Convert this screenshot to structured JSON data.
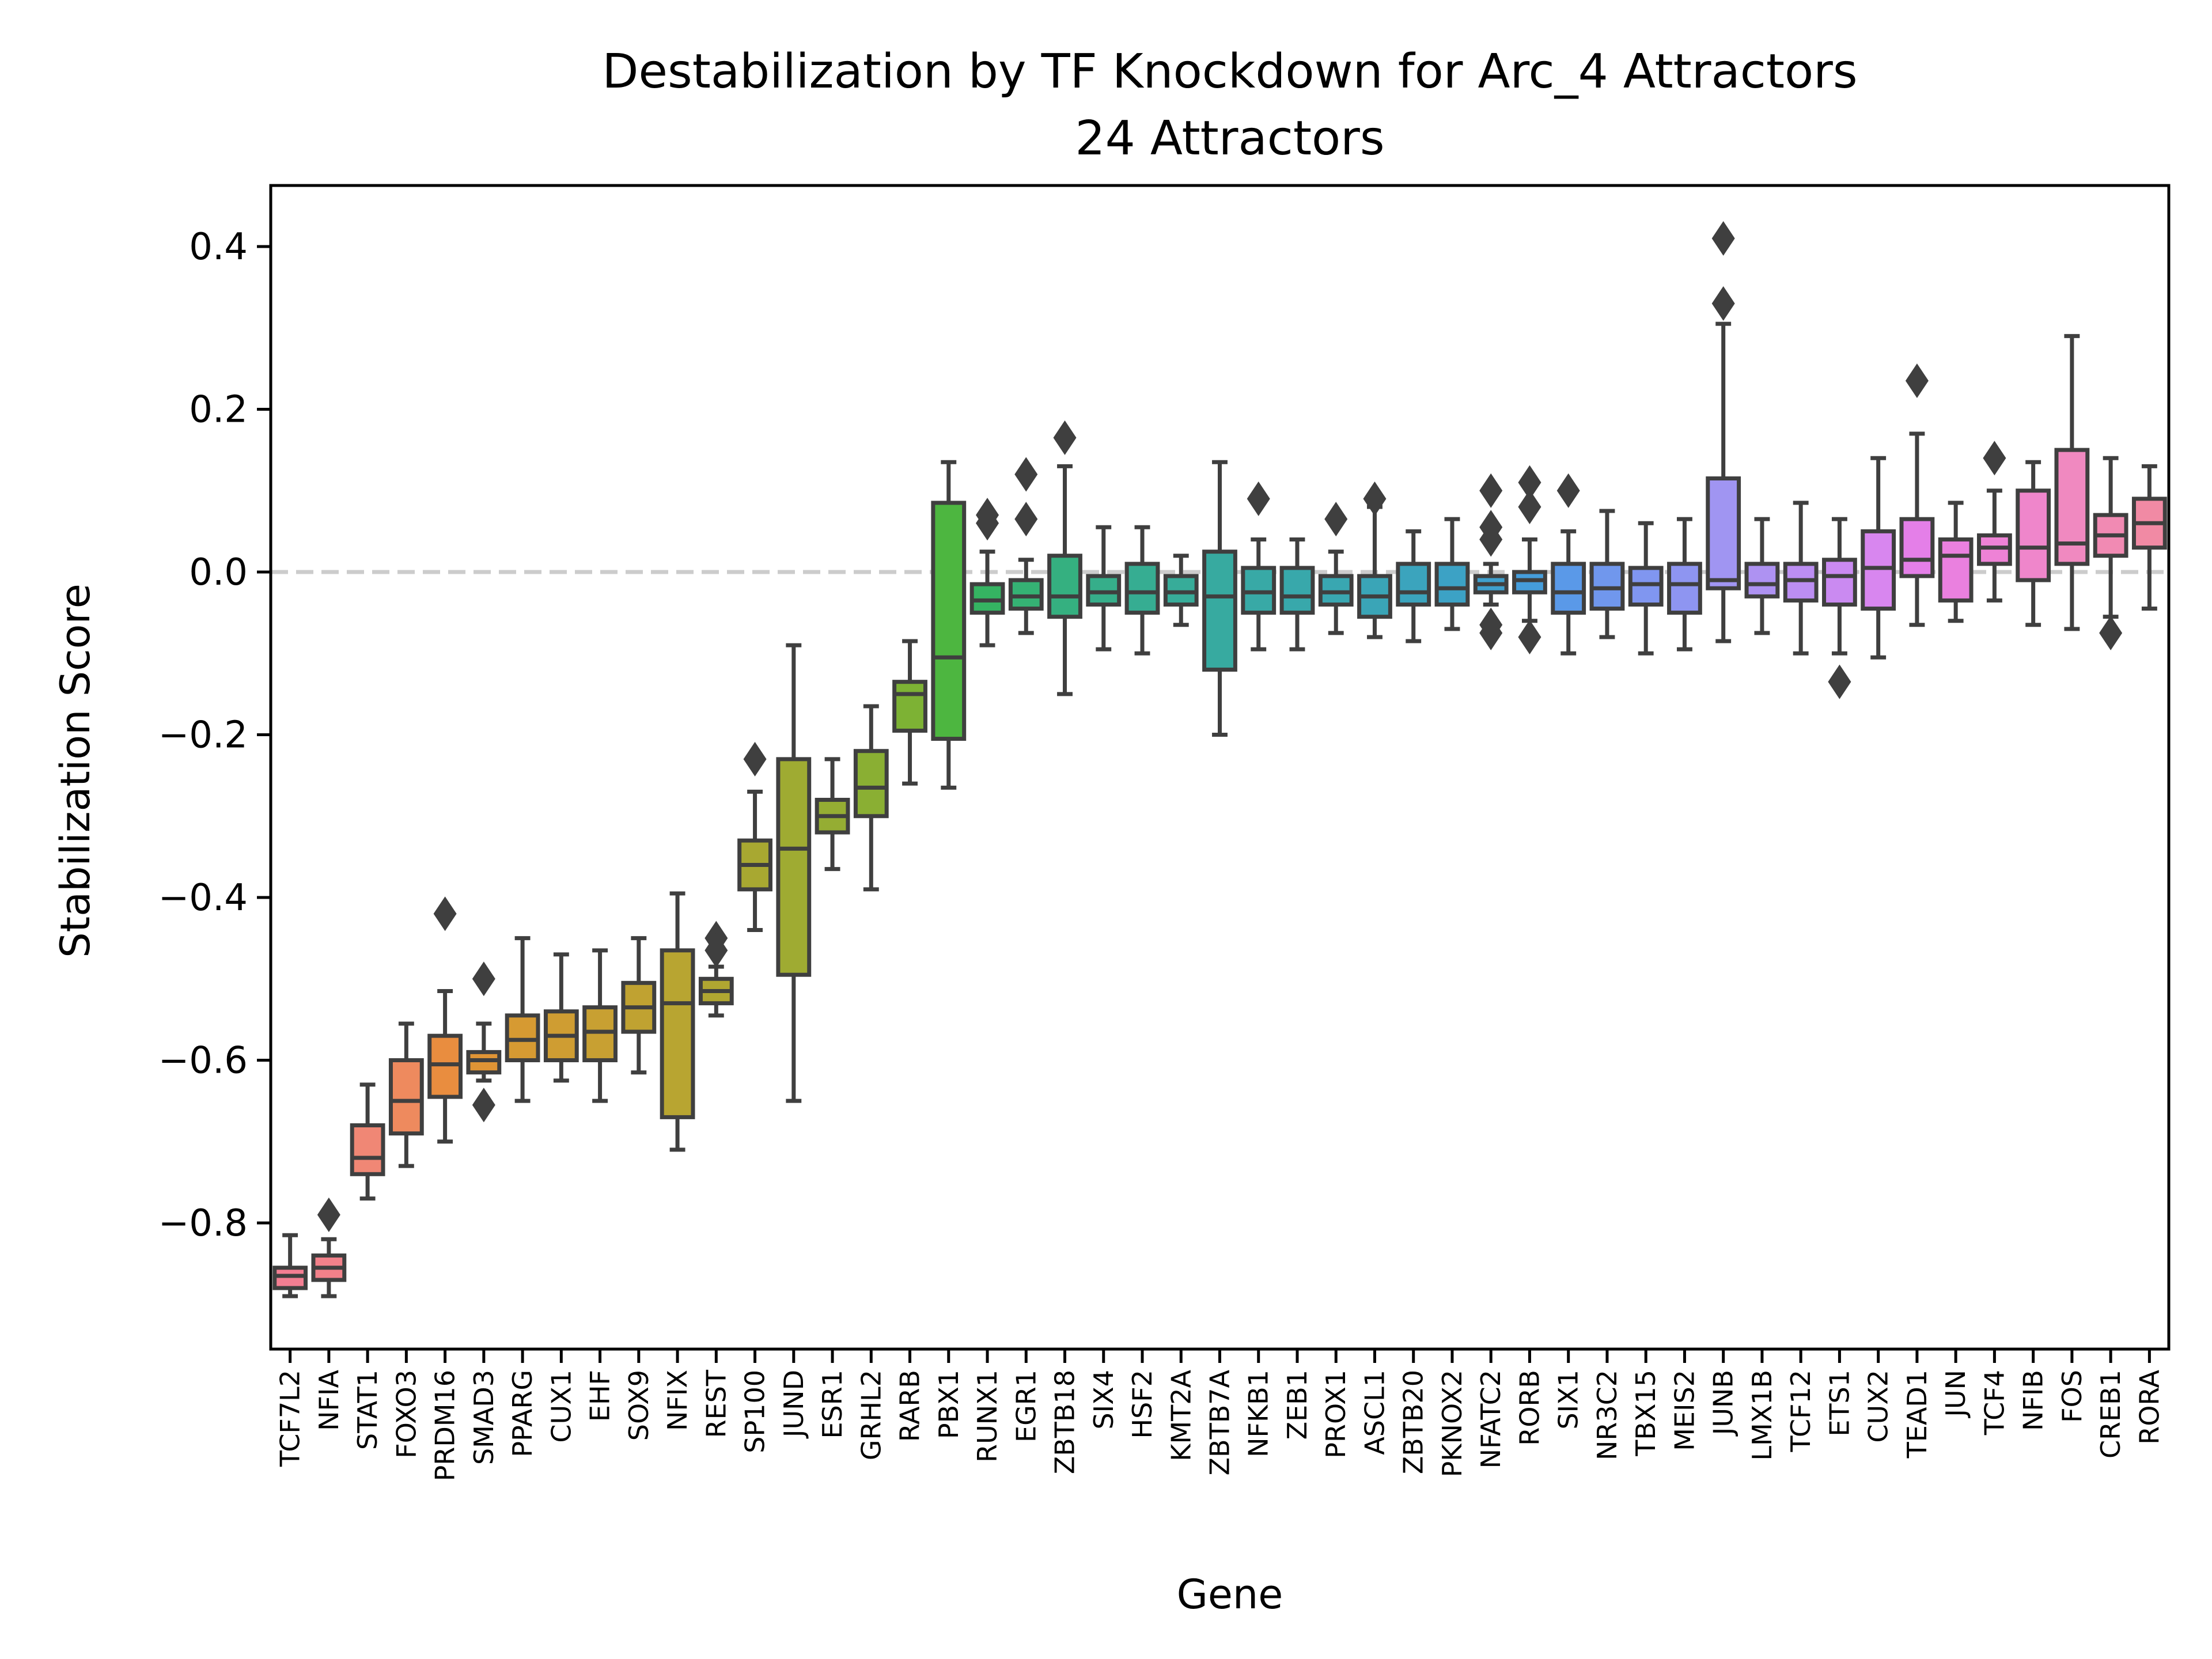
{
  "chart_data": {
    "type": "box",
    "title": "Destabilization by TF Knockdown for Arc_4 Attractors",
    "subtitle": "24 Attractors",
    "xlabel": "Gene",
    "ylabel": "Stabilization Score",
    "ylim": [
      -0.955,
      0.475
    ],
    "yticks": [
      {
        "value": 0.4,
        "label": "0.4"
      },
      {
        "value": 0.2,
        "label": "0.2"
      },
      {
        "value": 0.0,
        "label": "0.0"
      },
      {
        "value": -0.2,
        "label": "−0.2"
      },
      {
        "value": -0.4,
        "label": "−0.4"
      },
      {
        "value": -0.6,
        "label": "−0.6"
      },
      {
        "value": -0.8,
        "label": "−0.8"
      }
    ],
    "reference_line": {
      "y": 0.0,
      "style": "dashed",
      "color": "#cccccc"
    },
    "grid": false,
    "boxes": [
      {
        "gene": "TCF7L2",
        "color": "#f37e92",
        "whislo": -0.89,
        "q1": -0.88,
        "med": -0.865,
        "q3": -0.855,
        "whishi": -0.815,
        "fliers": []
      },
      {
        "gene": "NFIA",
        "color": "#f2818a",
        "whislo": -0.89,
        "q1": -0.87,
        "med": -0.855,
        "q3": -0.84,
        "whishi": -0.82,
        "fliers": [
          -0.79
        ]
      },
      {
        "gene": "STAT1",
        "color": "#f08775",
        "whislo": -0.77,
        "q1": -0.74,
        "med": -0.72,
        "q3": -0.68,
        "whishi": -0.63,
        "fliers": []
      },
      {
        "gene": "FOXO3",
        "color": "#ee8a5e",
        "whislo": -0.73,
        "q1": -0.69,
        "med": -0.65,
        "q3": -0.6,
        "whishi": -0.555,
        "fliers": []
      },
      {
        "gene": "PRDM16",
        "color": "#e98d3f",
        "whislo": -0.7,
        "q1": -0.645,
        "med": -0.605,
        "q3": -0.57,
        "whishi": -0.515,
        "fliers": [
          -0.42
        ]
      },
      {
        "gene": "SMAD3",
        "color": "#df9435",
        "whislo": -0.625,
        "q1": -0.615,
        "med": -0.6,
        "q3": -0.59,
        "whishi": -0.555,
        "fliers": [
          -0.5,
          -0.655
        ]
      },
      {
        "gene": "PPARG",
        "color": "#d69a32",
        "whislo": -0.65,
        "q1": -0.6,
        "med": -0.575,
        "q3": -0.545,
        "whishi": -0.45,
        "fliers": []
      },
      {
        "gene": "CUX1",
        "color": "#cf9d32",
        "whislo": -0.625,
        "q1": -0.6,
        "med": -0.57,
        "q3": -0.54,
        "whishi": -0.47,
        "fliers": []
      },
      {
        "gene": "EHF",
        "color": "#c8a032",
        "whislo": -0.65,
        "q1": -0.6,
        "med": -0.565,
        "q3": -0.535,
        "whishi": -0.465,
        "fliers": []
      },
      {
        "gene": "SOX9",
        "color": "#c0a231",
        "whislo": -0.615,
        "q1": -0.565,
        "med": -0.535,
        "q3": -0.505,
        "whishi": -0.45,
        "fliers": []
      },
      {
        "gene": "NFIX",
        "color": "#b8a531",
        "whislo": -0.71,
        "q1": -0.67,
        "med": -0.53,
        "q3": -0.465,
        "whishi": -0.395,
        "fliers": []
      },
      {
        "gene": "REST",
        "color": "#b0a631",
        "whislo": -0.545,
        "q1": -0.53,
        "med": -0.515,
        "q3": -0.5,
        "whishi": -0.485,
        "fliers": [
          -0.45,
          -0.465
        ]
      },
      {
        "gene": "SP100",
        "color": "#a8a831",
        "whislo": -0.44,
        "q1": -0.39,
        "med": -0.36,
        "q3": -0.33,
        "whishi": -0.27,
        "fliers": [
          -0.23
        ]
      },
      {
        "gene": "JUND",
        "color": "#9fab32",
        "whislo": -0.65,
        "q1": -0.495,
        "med": -0.34,
        "q3": -0.23,
        "whishi": -0.09,
        "fliers": []
      },
      {
        "gene": "ESR1",
        "color": "#95ad33",
        "whislo": -0.365,
        "q1": -0.32,
        "med": -0.3,
        "q3": -0.28,
        "whishi": -0.23,
        "fliers": []
      },
      {
        "gene": "GRHL2",
        "color": "#8aaf33",
        "whislo": -0.39,
        "q1": -0.3,
        "med": -0.265,
        "q3": -0.22,
        "whishi": -0.165,
        "fliers": []
      },
      {
        "gene": "RARB",
        "color": "#7db234",
        "whislo": -0.26,
        "q1": -0.195,
        "med": -0.15,
        "q3": -0.135,
        "whishi": -0.085,
        "fliers": []
      },
      {
        "gene": "PBX1",
        "color": "#4db640",
        "whislo": -0.265,
        "q1": -0.205,
        "med": -0.105,
        "q3": 0.085,
        "whishi": 0.135,
        "fliers": []
      },
      {
        "gene": "RUNX1",
        "color": "#35b462",
        "whislo": -0.09,
        "q1": -0.05,
        "med": -0.035,
        "q3": -0.015,
        "whishi": 0.025,
        "fliers": [
          0.06,
          0.07
        ]
      },
      {
        "gene": "EGR1",
        "color": "#35b274",
        "whislo": -0.075,
        "q1": -0.045,
        "med": -0.03,
        "q3": -0.01,
        "whishi": 0.015,
        "fliers": [
          0.065,
          0.12
        ]
      },
      {
        "gene": "ZBTB18",
        "color": "#35b080",
        "whislo": -0.15,
        "q1": -0.055,
        "med": -0.03,
        "q3": 0.02,
        "whishi": 0.13,
        "fliers": [
          0.165
        ]
      },
      {
        "gene": "SIX4",
        "color": "#36ae8a",
        "whislo": -0.095,
        "q1": -0.04,
        "med": -0.025,
        "q3": -0.005,
        "whishi": 0.055,
        "fliers": []
      },
      {
        "gene": "HSF2",
        "color": "#36ad92",
        "whislo": -0.1,
        "q1": -0.05,
        "med": -0.025,
        "q3": 0.01,
        "whishi": 0.055,
        "fliers": []
      },
      {
        "gene": "KMT2A",
        "color": "#37ac99",
        "whislo": -0.065,
        "q1": -0.04,
        "med": -0.025,
        "q3": -0.005,
        "whishi": 0.02,
        "fliers": []
      },
      {
        "gene": "ZBTB7A",
        "color": "#37aaa0",
        "whislo": -0.2,
        "q1": -0.12,
        "med": -0.03,
        "q3": 0.025,
        "whishi": 0.135,
        "fliers": []
      },
      {
        "gene": "NFKB1",
        "color": "#38a9a6",
        "whislo": -0.095,
        "q1": -0.05,
        "med": -0.025,
        "q3": 0.005,
        "whishi": 0.04,
        "fliers": [
          0.09
        ]
      },
      {
        "gene": "ZEB1",
        "color": "#38a8ab",
        "whislo": -0.095,
        "q1": -0.05,
        "med": -0.03,
        "q3": 0.005,
        "whishi": 0.04,
        "fliers": []
      },
      {
        "gene": "PROX1",
        "color": "#39a7b1",
        "whislo": -0.075,
        "q1": -0.04,
        "med": -0.025,
        "q3": -0.005,
        "whishi": 0.025,
        "fliers": [
          0.065
        ]
      },
      {
        "gene": "ASCL1",
        "color": "#3aa5b7",
        "whislo": -0.08,
        "q1": -0.055,
        "med": -0.03,
        "q3": -0.005,
        "whishi": 0.08,
        "fliers": [
          0.09
        ]
      },
      {
        "gene": "ZBTB20",
        "color": "#3ba4bd",
        "whislo": -0.085,
        "q1": -0.04,
        "med": -0.025,
        "q3": 0.01,
        "whishi": 0.05,
        "fliers": []
      },
      {
        "gene": "PKNOX2",
        "color": "#3ca2c5",
        "whislo": -0.07,
        "q1": -0.04,
        "med": -0.02,
        "q3": 0.01,
        "whishi": 0.065,
        "fliers": []
      },
      {
        "gene": "NFATC2",
        "color": "#3fa0ce",
        "whislo": -0.04,
        "q1": -0.025,
        "med": -0.015,
        "q3": -0.005,
        "whishi": 0.01,
        "fliers": [
          0.04,
          0.055,
          0.1,
          -0.065,
          -0.075
        ]
      },
      {
        "gene": "RORB",
        "color": "#459ddb",
        "whislo": -0.06,
        "q1": -0.025,
        "med": -0.01,
        "q3": 0.0,
        "whishi": 0.04,
        "fliers": [
          0.08,
          0.11,
          -0.08
        ]
      },
      {
        "gene": "SIX1",
        "color": "#5a99e8",
        "whislo": -0.1,
        "q1": -0.05,
        "med": -0.025,
        "q3": 0.01,
        "whishi": 0.05,
        "fliers": [
          0.1
        ]
      },
      {
        "gene": "NR3C2",
        "color": "#7097ed",
        "whislo": -0.08,
        "q1": -0.045,
        "med": -0.02,
        "q3": 0.01,
        "whishi": 0.075,
        "fliers": []
      },
      {
        "gene": "TBX15",
        "color": "#8096f0",
        "whislo": -0.1,
        "q1": -0.04,
        "med": -0.015,
        "q3": 0.005,
        "whishi": 0.06,
        "fliers": []
      },
      {
        "gene": "MEIS2",
        "color": "#8e95f1",
        "whislo": -0.095,
        "q1": -0.05,
        "med": -0.015,
        "q3": 0.01,
        "whishi": 0.065,
        "fliers": []
      },
      {
        "gene": "JUNB",
        "color": "#a095f2",
        "whislo": -0.085,
        "q1": -0.02,
        "med": -0.01,
        "q3": 0.115,
        "whishi": 0.305,
        "fliers": [
          0.33,
          0.41
        ]
      },
      {
        "gene": "LMX1B",
        "color": "#ae92f2",
        "whislo": -0.075,
        "q1": -0.03,
        "med": -0.015,
        "q3": 0.01,
        "whishi": 0.065,
        "fliers": []
      },
      {
        "gene": "TCF12",
        "color": "#bc8ef2",
        "whislo": -0.1,
        "q1": -0.035,
        "med": -0.01,
        "q3": 0.01,
        "whishi": 0.085,
        "fliers": []
      },
      {
        "gene": "ETS1",
        "color": "#ca8af1",
        "whislo": -0.1,
        "q1": -0.04,
        "med": -0.005,
        "q3": 0.015,
        "whishi": 0.065,
        "fliers": [
          -0.135
        ]
      },
      {
        "gene": "CUX2",
        "color": "#d886ef",
        "whislo": -0.105,
        "q1": -0.045,
        "med": 0.005,
        "q3": 0.05,
        "whishi": 0.14,
        "fliers": []
      },
      {
        "gene": "TEAD1",
        "color": "#e47fe8",
        "whislo": -0.065,
        "q1": -0.005,
        "med": 0.015,
        "q3": 0.065,
        "whishi": 0.17,
        "fliers": [
          0.235
        ]
      },
      {
        "gene": "JUN",
        "color": "#ea80df",
        "whislo": -0.06,
        "q1": -0.035,
        "med": 0.02,
        "q3": 0.04,
        "whishi": 0.085,
        "fliers": []
      },
      {
        "gene": "TCF4",
        "color": "#ee82d6",
        "whislo": -0.035,
        "q1": 0.01,
        "med": 0.03,
        "q3": 0.045,
        "whishi": 0.1,
        "fliers": [
          0.14
        ]
      },
      {
        "gene": "NFIB",
        "color": "#ef86cb",
        "whislo": -0.065,
        "q1": -0.01,
        "med": 0.03,
        "q3": 0.1,
        "whishi": 0.135,
        "fliers": []
      },
      {
        "gene": "FOS",
        "color": "#f089c0",
        "whislo": -0.07,
        "q1": 0.01,
        "med": 0.035,
        "q3": 0.15,
        "whishi": 0.29,
        "fliers": []
      },
      {
        "gene": "CREB1",
        "color": "#f18ab3",
        "whislo": -0.055,
        "q1": 0.02,
        "med": 0.045,
        "q3": 0.07,
        "whishi": 0.14,
        "fliers": [
          -0.075
        ]
      },
      {
        "gene": "RORA",
        "color": "#f18aa4",
        "whislo": -0.045,
        "q1": 0.03,
        "med": 0.06,
        "q3": 0.09,
        "whishi": 0.13,
        "fliers": []
      }
    ]
  }
}
